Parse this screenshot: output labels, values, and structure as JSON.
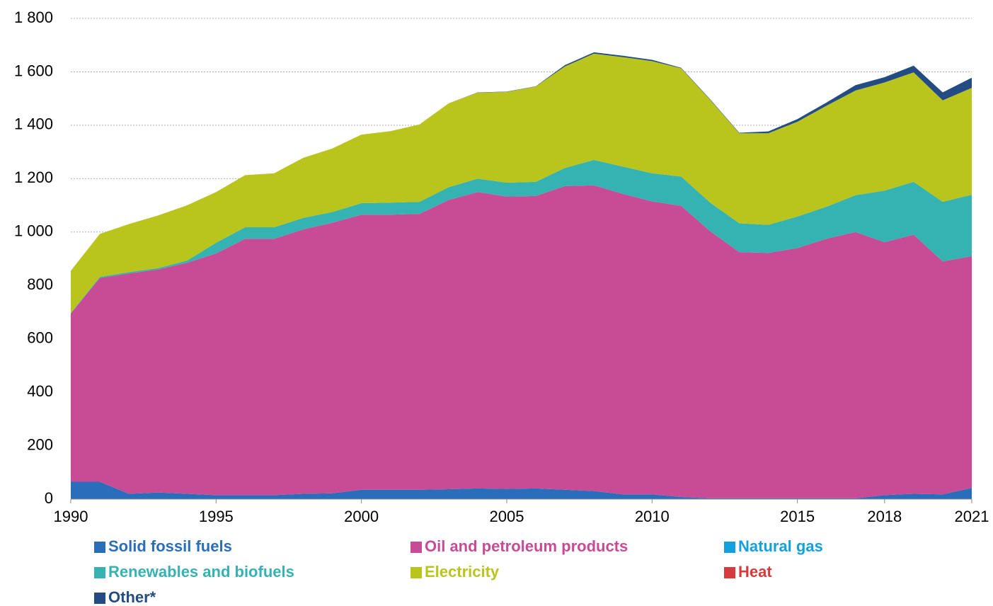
{
  "chart_data": {
    "type": "area",
    "x": [
      1990,
      1991,
      1992,
      1993,
      1994,
      1995,
      1996,
      1997,
      1998,
      1999,
      2000,
      2001,
      2002,
      2003,
      2004,
      2005,
      2006,
      2007,
      2008,
      2009,
      2010,
      2011,
      2012,
      2013,
      2014,
      2015,
      2016,
      2017,
      2018,
      2019,
      2020,
      2021
    ],
    "series": [
      {
        "name": "Solid fossil fuels",
        "color": "#2a6ebb",
        "values": [
          65,
          65,
          20,
          25,
          20,
          15,
          15,
          15,
          20,
          22,
          35,
          35,
          35,
          37,
          40,
          38,
          40,
          35,
          30,
          18,
          18,
          8,
          3,
          3,
          3,
          3,
          3,
          3,
          15,
          20,
          18,
          42
        ]
      },
      {
        "name": "Oil and petroleum products",
        "color": "#c84b95",
        "values": [
          630,
          763,
          825,
          835,
          865,
          905,
          960,
          960,
          990,
          1013,
          1030,
          1030,
          1033,
          1083,
          1110,
          1095,
          1095,
          1137,
          1145,
          1125,
          1097,
          1090,
          1000,
          922,
          919,
          937,
          972,
          997,
          947,
          970,
          872,
          868
        ]
      },
      {
        "name": "Natural gas",
        "color": "#13a0dc",
        "values": [
          0,
          0,
          0,
          0,
          0,
          0,
          0,
          0,
          0,
          0,
          0,
          0,
          0,
          0,
          0,
          0,
          0,
          0,
          0,
          0,
          0,
          0,
          0,
          0,
          0,
          0,
          0,
          0,
          0,
          0,
          0,
          0
        ]
      },
      {
        "name": "Renewables and biofuels",
        "color": "#35b3b2",
        "values": [
          2,
          4,
          5,
          5,
          8,
          40,
          43,
          43,
          43,
          40,
          43,
          45,
          45,
          48,
          50,
          52,
          53,
          68,
          95,
          102,
          105,
          110,
          107,
          108,
          105,
          118,
          120,
          138,
          193,
          198,
          223,
          230
        ]
      },
      {
        "name": "Electricity",
        "color": "#b9c41d",
        "values": [
          158,
          161,
          180,
          197,
          207,
          190,
          195,
          202,
          225,
          238,
          257,
          268,
          290,
          314,
          322,
          340,
          357,
          380,
          398,
          410,
          420,
          405,
          385,
          337,
          343,
          355,
          378,
          392,
          405,
          410,
          380,
          400
        ]
      },
      {
        "name": "Heat",
        "color": "#d73a3a",
        "values": [
          0,
          0,
          0,
          0,
          0,
          0,
          0,
          0,
          0,
          0,
          0,
          0,
          0,
          0,
          0,
          0,
          0,
          0,
          0,
          0,
          0,
          0,
          0,
          0,
          0,
          0,
          0,
          0,
          0,
          0,
          0,
          0
        ]
      },
      {
        "name": "Other*",
        "color": "#234c84",
        "values": [
          0,
          0,
          0,
          0,
          0,
          0,
          0,
          0,
          0,
          0,
          0,
          0,
          0,
          0,
          1,
          1,
          1,
          5,
          5,
          5,
          5,
          2,
          2,
          2,
          7,
          10,
          12,
          20,
          20,
          25,
          30,
          38
        ]
      }
    ],
    "xlim": [
      1990,
      2021
    ],
    "xticks": [
      1990,
      1995,
      2000,
      2005,
      2010,
      2015,
      2018,
      2021
    ],
    "ylim": [
      0,
      1800
    ],
    "yticks": [
      0,
      200,
      400,
      600,
      800,
      {
        "value": 1000,
        "label": "1 000"
      },
      {
        "value": 1200,
        "label": "1 200"
      },
      {
        "value": 1400,
        "label": "1 400"
      },
      {
        "value": 1600,
        "label": "1 600"
      },
      {
        "value": 1800,
        "label": "1 800"
      }
    ],
    "grid": true,
    "stacked": true,
    "legend": "bottom"
  }
}
